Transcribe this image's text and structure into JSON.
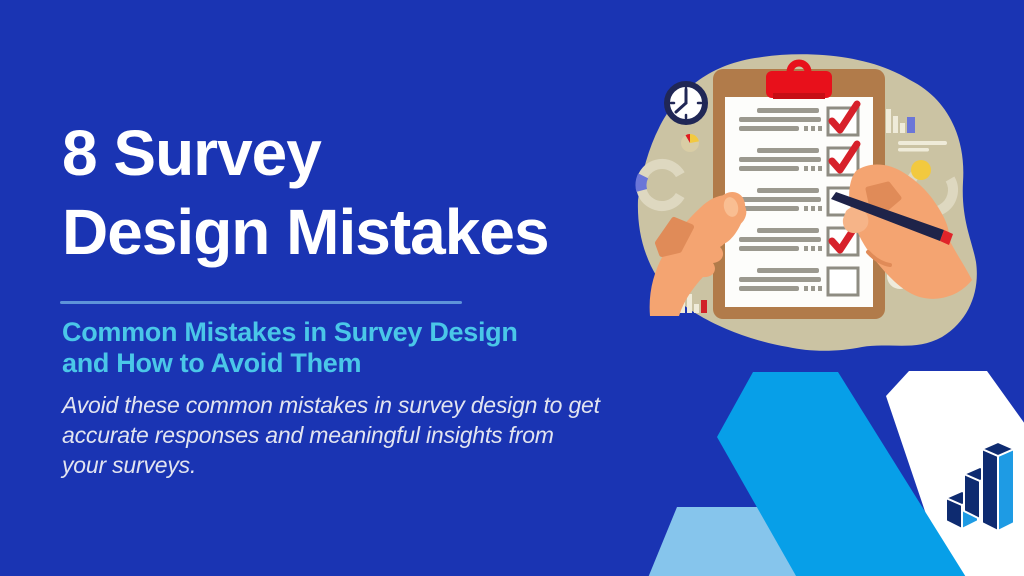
{
  "slide": {
    "title_lines": [
      "8 Survey",
      "Design Mistakes"
    ],
    "subtitle_lines": [
      "Common Mistakes in Survey Design",
      "and How to Avoid Them"
    ],
    "description_lines": [
      "Avoid these common mistakes in survey design to get",
      "accurate responses and meaningful insights from",
      "your surveys."
    ]
  },
  "colors": {
    "background": "#1A34B3",
    "title": "#FFFFFF",
    "divider": "#5E93D9",
    "subtitle_accent": "#4AC7E8",
    "description": "#E2E4F0",
    "shape_bright_blue": "#079FE8",
    "shape_pale_blue": "#86C5EC",
    "shape_white": "#FFFFFF",
    "blob_beige": "#CBC3A3",
    "clipboard_brown": "#B17B4A",
    "clip_red": "#E8101B",
    "check_red": "#D7202A",
    "skin": "#F4A471",
    "pen_navy": "#1E2349",
    "accent_indigo": "#6B76D8",
    "accent_yellow": "#F2C93F",
    "logo_navy": "#0E2B70",
    "logo_blue": "#1E9BE4"
  },
  "illustration": {
    "checklist": {
      "rows": 5,
      "checked_rows": [
        1,
        2,
        4
      ]
    }
  }
}
